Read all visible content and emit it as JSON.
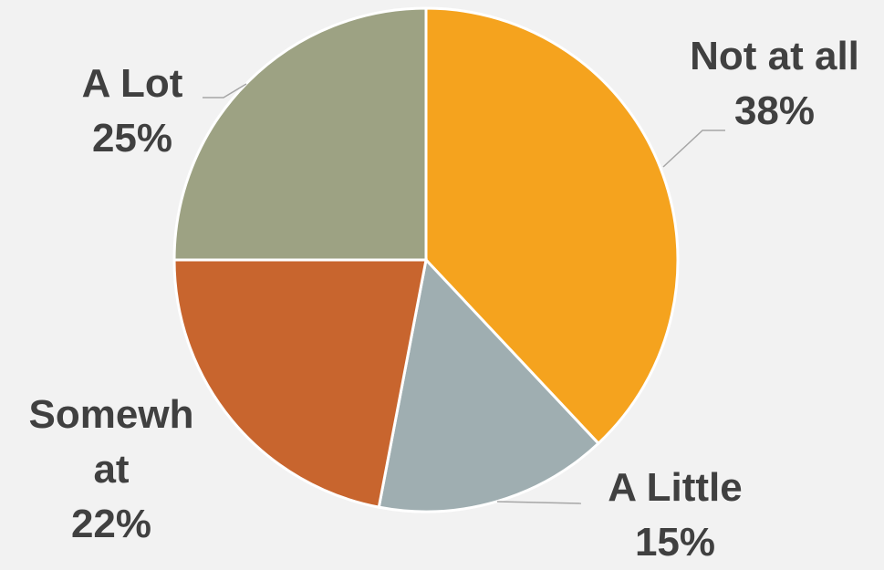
{
  "chart_data": {
    "type": "pie",
    "categories": [
      "Not at all",
      "A Little",
      "Somewhat",
      "A Lot"
    ],
    "values": [
      38,
      15,
      22,
      25
    ],
    "value_labels": [
      "38%",
      "15%",
      "22%",
      "25%"
    ],
    "colors": [
      "#f5a31e",
      "#9faeb1",
      "#c8652e",
      "#9da283"
    ]
  }
}
